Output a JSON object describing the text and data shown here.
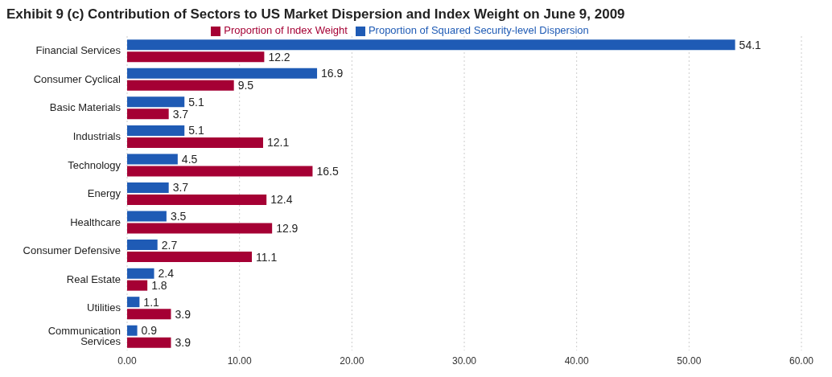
{
  "chart_data": {
    "type": "bar",
    "orientation": "horizontal",
    "title": "Exhibit 9 (c) Contribution of Sectors to US Market Dispersion and Index Weight on June 9, 2009",
    "categories": [
      "Financial Services",
      "Consumer Cyclical",
      "Basic Materials",
      "Industrials",
      "Technology",
      "Energy",
      "Healthcare",
      "Consumer Defensive",
      "Real Estate",
      "Utilities",
      "Communication Services"
    ],
    "series": [
      {
        "name": "Proportion of Squared Security-level Dispersion",
        "color": "#1f5bb5",
        "values": [
          54.1,
          16.9,
          5.1,
          5.1,
          4.5,
          3.7,
          3.5,
          2.7,
          2.4,
          1.1,
          0.9
        ]
      },
      {
        "name": "Proportion of Index Weight",
        "color": "#a50034",
        "values": [
          12.2,
          9.5,
          3.7,
          12.1,
          16.5,
          12.4,
          12.9,
          11.1,
          1.8,
          3.9,
          3.9
        ]
      }
    ],
    "xlim": [
      0,
      60
    ],
    "xticks": [
      {
        "value": 0,
        "label": "0.00"
      },
      {
        "value": 10,
        "label": "10.00"
      },
      {
        "value": 20,
        "label": "20.00"
      },
      {
        "value": 30,
        "label": "30.00"
      },
      {
        "value": 40,
        "label": "40.00"
      },
      {
        "value": 50,
        "label": "50.00"
      },
      {
        "value": 60,
        "label": "60.00"
      }
    ],
    "grid": "x",
    "legend": "top",
    "data_labels": true
  }
}
